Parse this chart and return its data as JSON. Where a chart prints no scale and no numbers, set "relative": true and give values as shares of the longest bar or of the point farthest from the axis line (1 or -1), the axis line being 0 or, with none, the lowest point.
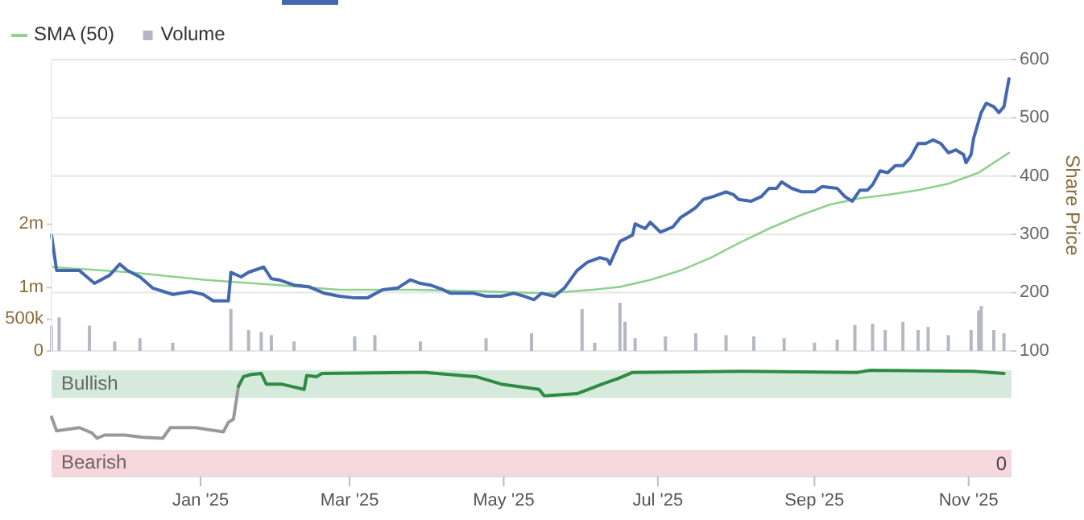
{
  "chart_data": [
    {
      "type": "line",
      "xlim": [
        "2024-11-03",
        "2025-11-18"
      ],
      "ylim": [
        100,
        600
      ],
      "yticks": [
        100,
        200,
        300,
        400,
        500,
        600
      ],
      "ylabel": "Share Price",
      "y2lim": [
        0,
        4600000
      ],
      "y2ticks": [
        0,
        {
          "value": 500000,
          "label": "500k"
        },
        {
          "value": 1000000,
          "label": "1m"
        },
        {
          "value": 2000000,
          "label": "2m"
        }
      ],
      "grid": "y",
      "legend": "top left",
      "tick_labels": "y",
      "series": [
        {
          "name": "SMA (50)",
          "color": "#8fd18f",
          "x": [
            "2024-11-03",
            "2024-12-04",
            "2025-01-03",
            "2025-02-01",
            "2025-02-25",
            "2025-03-26",
            "2025-04-24",
            "2025-05-18",
            "2025-06-05",
            "2025-06-16",
            "2025-06-28",
            "2025-07-10",
            "2025-07-22",
            "2025-08-02",
            "2025-08-14",
            "2025-08-26",
            "2025-09-07",
            "2025-09-19",
            "2025-09-30",
            "2025-10-12",
            "2025-10-24",
            "2025-11-05",
            "2025-11-17"
          ],
          "values": [
            244,
            235,
            222,
            213,
            205,
            205,
            202,
            199,
            205,
            210,
            222,
            238,
            260,
            285,
            310,
            332,
            351,
            362,
            368,
            376,
            387,
            406,
            440
          ]
        },
        {
          "type": "bar",
          "name": "Volume",
          "axis": "y2",
          "color": "#b4b8c4",
          "x": [
            "2024-11-03",
            "2024-11-06",
            "2024-11-18",
            "2024-11-28",
            "2024-12-08",
            "2024-12-21",
            "2025-01-13",
            "2025-01-20",
            "2025-01-25",
            "2025-01-29",
            "2025-02-07",
            "2025-03-03",
            "2025-03-11",
            "2025-03-29",
            "2025-04-24",
            "2025-05-12",
            "2025-06-01",
            "2025-06-06",
            "2025-06-16",
            "2025-06-18",
            "2025-06-22",
            "2025-07-04",
            "2025-07-16",
            "2025-07-28",
            "2025-08-08",
            "2025-08-20",
            "2025-09-01",
            "2025-09-10",
            "2025-09-17",
            "2025-09-24",
            "2025-09-29",
            "2025-10-06",
            "2025-10-12",
            "2025-10-16",
            "2025-10-24",
            "2025-11-02",
            "2025-11-05",
            "2025-11-06",
            "2025-11-11",
            "2025-11-15"
          ],
          "values": [
            400000,
            530000,
            400000,
            150000,
            200000,
            130000,
            660000,
            330000,
            300000,
            250000,
            150000,
            230000,
            250000,
            150000,
            200000,
            280000,
            660000,
            130000,
            760000,
            460000,
            200000,
            230000,
            280000,
            250000,
            230000,
            200000,
            130000,
            180000,
            410000,
            430000,
            330000,
            460000,
            330000,
            380000,
            250000,
            330000,
            640000,
            710000,
            330000,
            280000
          ]
        },
        {
          "color": "#4468b0",
          "x": [
            "2024-11-03",
            "2024-11-05",
            "2024-11-08",
            "2024-11-14",
            "2024-11-20",
            "2024-11-26",
            "2024-11-30",
            "2024-12-03",
            "2024-12-08",
            "2024-12-13",
            "2024-12-21",
            "2024-12-28",
            "2025-01-02",
            "2025-01-06",
            "2025-01-12",
            "2025-01-13",
            "2025-01-17",
            "2025-01-20",
            "2025-01-26",
            "2025-01-29",
            "2025-02-01",
            "2025-02-07",
            "2025-02-13",
            "2025-02-19",
            "2025-02-25",
            "2025-03-03",
            "2025-03-08",
            "2025-03-14",
            "2025-03-20",
            "2025-03-25",
            "2025-03-29",
            "2025-04-02",
            "2025-04-07",
            "2025-04-10",
            "2025-04-19",
            "2025-04-24",
            "2025-04-30",
            "2025-05-05",
            "2025-05-09",
            "2025-05-13",
            "2025-05-16",
            "2025-05-21",
            "2025-05-25",
            "2025-05-30",
            "2025-06-03",
            "2025-06-08",
            "2025-06-11",
            "2025-06-12",
            "2025-06-16",
            "2025-06-21",
            "2025-06-22",
            "2025-06-26",
            "2025-06-28",
            "2025-07-02",
            "2025-07-07",
            "2025-07-10",
            "2025-07-14",
            "2025-07-16",
            "2025-07-19",
            "2025-07-23",
            "2025-07-28",
            "2025-07-31",
            "2025-08-02",
            "2025-08-07",
            "2025-08-11",
            "2025-08-14",
            "2025-08-17",
            "2025-08-19",
            "2025-08-23",
            "2025-08-27",
            "2025-09-01",
            "2025-09-04",
            "2025-09-10",
            "2025-09-13",
            "2025-09-16",
            "2025-09-19",
            "2025-09-22",
            "2025-09-24",
            "2025-09-27",
            "2025-09-30",
            "2025-10-03",
            "2025-10-06",
            "2025-10-09",
            "2025-10-12",
            "2025-10-15",
            "2025-10-18",
            "2025-10-21",
            "2025-10-24",
            "2025-10-27",
            "2025-10-30",
            "2025-10-31",
            "2025-11-02",
            "2025-11-03",
            "2025-11-06",
            "2025-11-08",
            "2025-11-11",
            "2025-11-13",
            "2025-11-15",
            "2025-11-17"
          ],
          "values": [
            299,
            238,
            238,
            238,
            216,
            230,
            249,
            238,
            227,
            208,
            197,
            202,
            197,
            186,
            186,
            235,
            227,
            235,
            244,
            224,
            222,
            213,
            210,
            199,
            194,
            191,
            191,
            205,
            208,
            222,
            216,
            213,
            205,
            199,
            199,
            194,
            194,
            199,
            194,
            188,
            199,
            194,
            208,
            238,
            252,
            260,
            257,
            249,
            288,
            299,
            318,
            310,
            321,
            304,
            313,
            329,
            340,
            346,
            360,
            365,
            373,
            368,
            360,
            357,
            365,
            379,
            379,
            390,
            379,
            373,
            373,
            382,
            379,
            365,
            357,
            376,
            376,
            385,
            409,
            406,
            418,
            418,
            432,
            456,
            456,
            462,
            456,
            440,
            445,
            437,
            423,
            437,
            465,
            509,
            525,
            519,
            509,
            519,
            567
          ]
        }
      ]
    },
    {
      "type": "line",
      "relative": true,
      "xlim": [
        "2024-11-03",
        "2025-11-18"
      ],
      "xticks": [
        {
          "value": "2025-01-01",
          "label": "Jan '25"
        },
        {
          "value": "2025-03-01",
          "label": "Mar '25"
        },
        {
          "value": "2025-05-01",
          "label": "May '25"
        },
        {
          "value": "2025-07-01",
          "label": "Jul '25"
        },
        {
          "value": "2025-09-01",
          "label": "Sep '25"
        },
        {
          "value": "2025-11-01",
          "label": "Nov '25"
        }
      ],
      "bands": [
        {
          "axis": "y",
          "from": 0.74,
          "to": 1,
          "label": "Bullish",
          "color": "#d5eadb"
        },
        {
          "axis": "y",
          "from": 0,
          "to": 0.25,
          "label": "Bearish",
          "color": "#f6d7dc"
        }
      ],
      "annotations": [
        "0"
      ],
      "series": [
        {
          "color": "#999999",
          "x": [
            "2024-11-03",
            "2024-11-05",
            "2024-11-14",
            "2024-11-19",
            "2024-11-21",
            "2024-11-24",
            "2024-12-02",
            "2024-12-09",
            "2024-12-17",
            "2024-12-20",
            "2024-12-30",
            "2025-01-10",
            "2025-01-12",
            "2025-01-14",
            "2025-01-16"
          ],
          "values": [
            0.56,
            0.43,
            0.46,
            0.41,
            0.36,
            0.39,
            0.39,
            0.37,
            0.36,
            0.46,
            0.46,
            0.42,
            0.51,
            0.54,
            0.85
          ]
        },
        {
          "color": "#2e8b46",
          "x": [
            "2025-01-16",
            "2025-01-18",
            "2025-01-21",
            "2025-01-25",
            "2025-01-27",
            "2025-02-02",
            "2025-02-11",
            "2025-02-12",
            "2025-02-16",
            "2025-02-18",
            "2025-03-31",
            "2025-04-20",
            "2025-04-30",
            "2025-05-15",
            "2025-05-17",
            "2025-05-30",
            "2025-06-09",
            "2025-06-15",
            "2025-06-21",
            "2025-08-04",
            "2025-09-18",
            "2025-09-23",
            "2025-11-03",
            "2025-11-15"
          ],
          "values": [
            0.85,
            0.94,
            0.96,
            0.97,
            0.87,
            0.87,
            0.82,
            0.95,
            0.94,
            0.97,
            0.98,
            0.94,
            0.87,
            0.82,
            0.76,
            0.78,
            0.87,
            0.92,
            0.98,
            0.99,
            0.98,
            1,
            0.99,
            0.97
          ]
        }
      ]
    }
  ]
}
